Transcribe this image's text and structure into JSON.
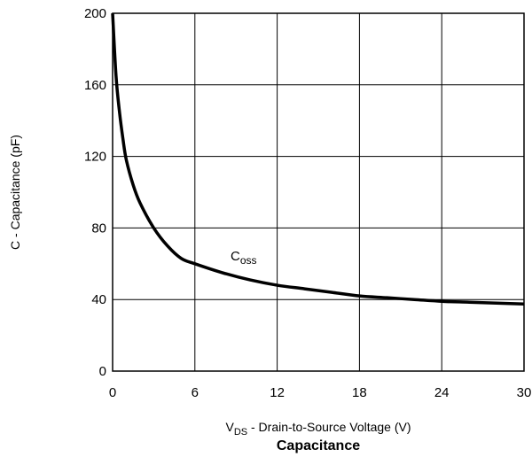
{
  "chart_data": {
    "type": "line",
    "title": "Capacitance",
    "xlabel": {
      "main": "V",
      "sub": "DS",
      "rest": " - Drain-to-Source Voltage (V)"
    },
    "ylabel": "C - Capacitance (pF)",
    "xlim": [
      0,
      30
    ],
    "ylim": [
      0,
      200
    ],
    "xticks": [
      0,
      6,
      12,
      18,
      24,
      30
    ],
    "yticks": [
      0,
      40,
      80,
      120,
      160,
      200
    ],
    "grid": true,
    "series": [
      {
        "name": {
          "main": "C",
          "sub": "oss"
        },
        "x": [
          0,
          0.25,
          0.5,
          0.75,
          1,
          1.5,
          2,
          3,
          4,
          5,
          6,
          8,
          10,
          12,
          14,
          16,
          18,
          20,
          22,
          24,
          26,
          28,
          30
        ],
        "y": [
          200,
          165,
          145,
          130,
          118,
          104,
          94,
          80,
          70,
          63,
          60,
          55,
          51,
          48,
          46,
          44,
          42,
          41,
          40,
          39,
          38.5,
          38,
          37.5
        ]
      }
    ],
    "annotations": [
      {
        "series": 0,
        "x": 8.6,
        "y": 62
      }
    ],
    "line_color": "#000000"
  }
}
